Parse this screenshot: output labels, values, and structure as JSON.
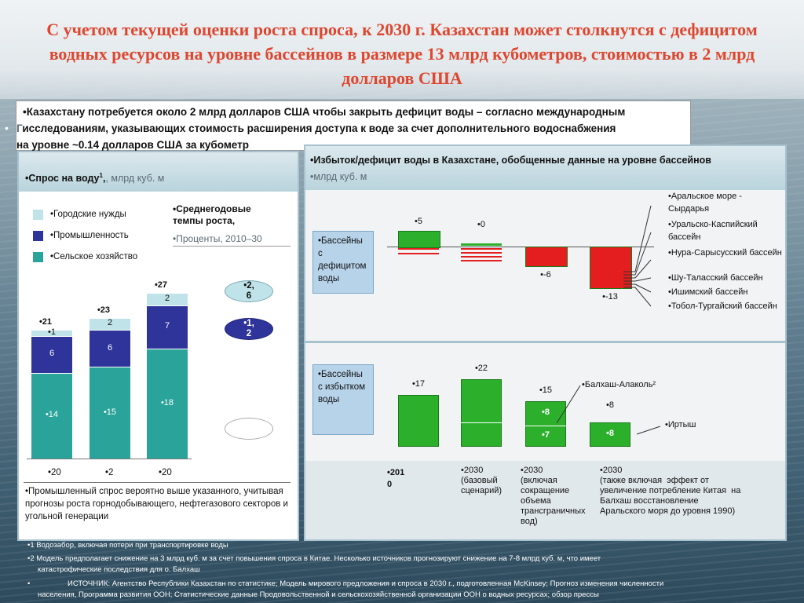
{
  "title": "С учетом текущей оценки роста спроса, к 2030 г. Казахстан может столкнутся с дефицитом водных ресурсов на уровне бассейнов в размере 13 млрд кубометров, стоимостью в 2 млрд долларов США",
  "callout": {
    "line1": "•Казахстану потребуется около 2 млрд долларов США чтобы закрыть дефицит воды – согласно международным",
    "line2": "исследованиям, указывающих стоимость расширения доступа к воде за счет дополнительного водоснабжения",
    "line3": "на уровне ~0.14 долларов США за кубометр",
    "stray_bullet": "•",
    "stray_letter": "Г"
  },
  "left_panel": {
    "header_bold": "•Спрос на воду",
    "header_sup": "1",
    "header_unit": ", млрд куб. м",
    "legend": [
      {
        "label": "•Городские нужды",
        "color": "#bfe3e8"
      },
      {
        "label": "•Промышленность",
        "color": "#2f349b"
      },
      {
        "label": "•Сельское хозяйство",
        "color": "#2aa39a"
      }
    ],
    "growth_title": "•Среднегодовые темпы роста,",
    "growth_unit": "•Проценты, 2010–30",
    "growth_ellipses": [
      {
        "label": "•2,\n6",
        "color": "#bfe3e8"
      },
      {
        "label": "•1,\n2",
        "color": "#2f349b"
      },
      {
        "label": "",
        "color": "#ffffff"
      }
    ],
    "x_labels": [
      "•20",
      "•2",
      "•20"
    ],
    "note": "•Промышленный спрос вероятно выше указанного, учитывая прогнозы роста горнодобывающего, нефтегазового секторов и угольной генерации"
  },
  "chart_data": [
    {
      "type": "bar",
      "stacked": true,
      "categories": [
        "•20",
        "•2",
        "•20"
      ],
      "series": [
        {
          "name": "•Сельское хозяйство",
          "values": [
            14,
            15,
            18
          ],
          "labels": [
            "•14",
            "•15",
            "•18"
          ]
        },
        {
          "name": "•Промышленность",
          "values": [
            6,
            6,
            7
          ],
          "labels": [
            "6",
            "6",
            "7"
          ]
        },
        {
          "name": "•Городские нужды",
          "values": [
            1,
            2,
            2
          ],
          "labels": [
            "•1",
            "2",
            "2"
          ]
        }
      ],
      "totals": [
        "•21",
        "•23",
        "•27"
      ]
    },
    {
      "type": "bar",
      "title": "•Избыток/дефицит воды в Казахстане, обобщенные данные на уровне бассейнов",
      "unit": "•млрд куб. м",
      "group_label": "•Бассейны с дефицитом воды",
      "values": [
        5,
        0,
        -6,
        -13
      ],
      "labels": [
        "•5",
        "•0",
        "•-6",
        "•-13"
      ],
      "basins": [
        "•Аральское море - Сырдарья",
        "•Уральско-Каспийский бассейн",
        "•Нура-Сарысусский бассейн",
        "•Шу-Таласский бассейн",
        "•Ишимский бассейн",
        "•Тобол-Тургайский бассейн"
      ]
    },
    {
      "type": "bar",
      "group_label": "•Бассейны с избытком воды",
      "values": [
        17,
        22,
        15,
        8
      ],
      "labels": [
        "•17",
        "•22",
        "•15",
        "•8"
      ],
      "segment_labels": [
        "•8",
        "•7",
        "•8"
      ],
      "annotations": [
        "•Балхаш-Алаколь²",
        "•Иртыш"
      ],
      "categories": [
        "•201\n0",
        "•2030\n(базовый\nсценарий)",
        "•2030\n(включая\nсокращение\nобъема\nтрансграничных\nвод)",
        "•2030\n(также включая  эффект от\nувеличение потребление Китая  на\nБалхаш восстановление\nАральского моря до уровня 1990)"
      ]
    }
  ],
  "footer": {
    "line1": "•1 Водозабор, включая потери при транспортировке воды",
    "line2": "•2 Модель предполагает снижение на 3 млрд куб. м за счет повышения спроса в Китае. Несколько источников прогнозируют снижение на 7-8 млрд куб. м, что имеет",
    "line3": "катастрофические последствия для о. Балхаш",
    "line4a": "•",
    "line4": "ИСТОЧНИК: Агентство Республики Казахстан по статистике; Модель мирового предложения и спроса в 2030 г., подготовленная McKinsey; Прогноз изменения численности",
    "line5": "населения, Программа развития ООН; Статистические данные Продовольственной и сельскохозяйственной организации ООН о водных ресурсах; обзор прессы"
  }
}
